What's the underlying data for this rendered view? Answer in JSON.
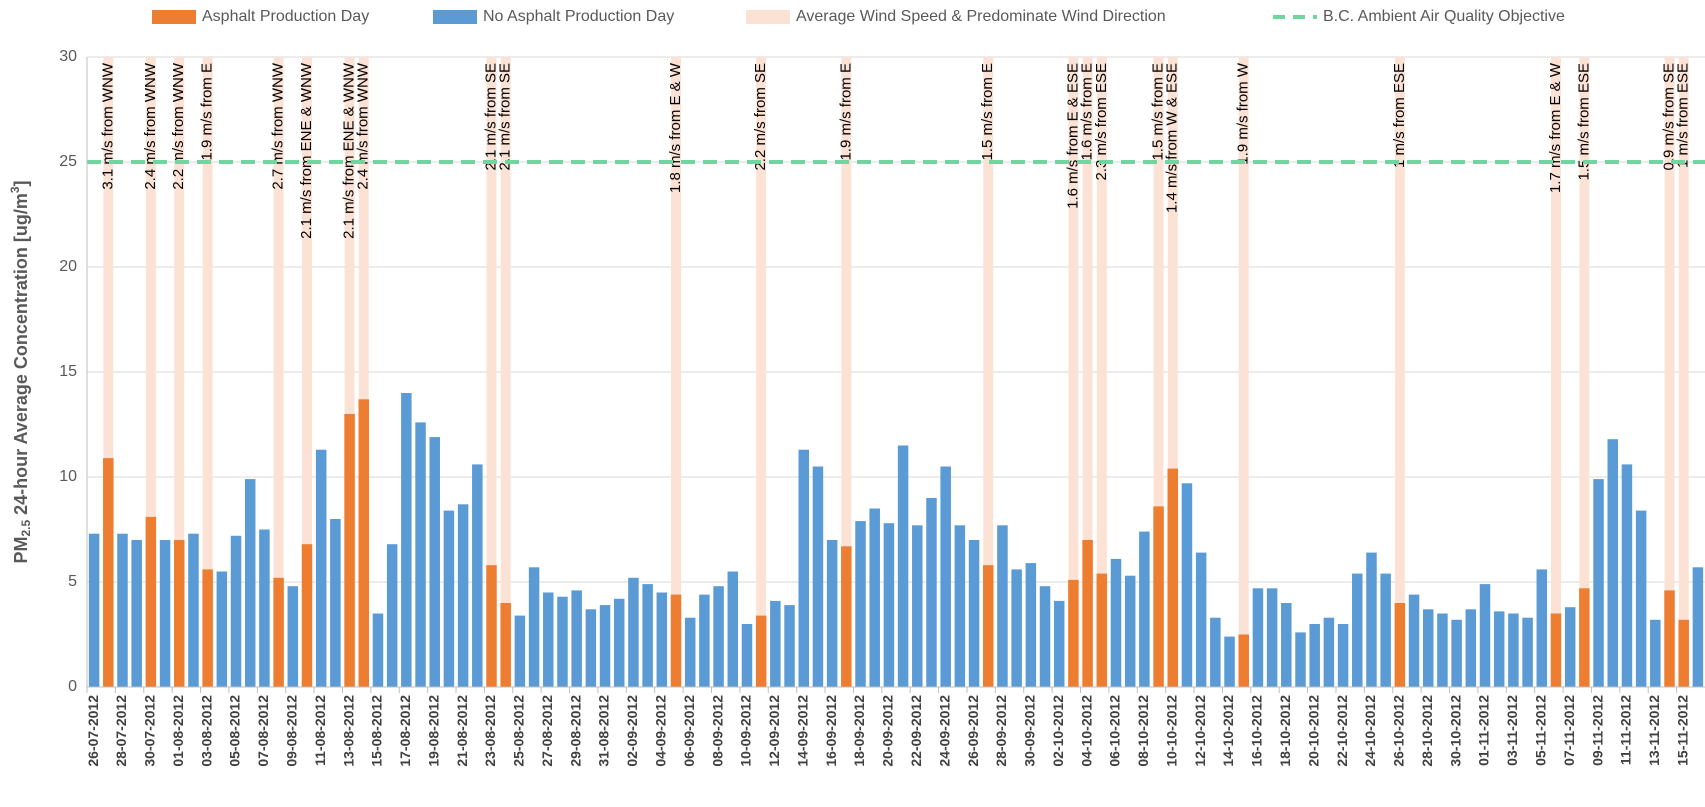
{
  "chart_data": {
    "type": "bar",
    "y_label": {
      "main": "PM",
      "sub": "2.5",
      "rest": " 24-hour Average Concentration [ug/m",
      "sup": "3",
      "end": "]"
    },
    "categories": [
      "26-07-2012",
      null,
      "28-07-2012",
      null,
      "30-07-2012",
      null,
      "01-08-2012",
      null,
      "03-08-2012",
      null,
      "05-08-2012",
      null,
      "07-08-2012",
      null,
      "09-08-2012",
      null,
      "11-08-2012",
      null,
      "13-08-2012",
      null,
      "15-08-2012",
      null,
      "17-08-2012",
      null,
      "19-08-2012",
      null,
      "21-08-2012",
      null,
      "23-08-2012",
      null,
      "25-08-2012",
      null,
      "27-08-2012",
      null,
      "29-08-2012",
      null,
      "31-08-2012",
      null,
      "02-09-2012",
      null,
      "04-09-2012",
      null,
      "06-09-2012",
      null,
      "08-09-2012",
      null,
      "10-09-2012",
      null,
      "12-09-2012",
      null,
      "14-09-2012",
      null,
      "16-09-2012",
      null,
      "18-09-2012",
      null,
      "20-09-2012",
      null,
      "22-09-2012",
      null,
      "24-09-2012",
      null,
      "26-09-2012",
      null,
      "28-09-2012",
      null,
      "30-09-2012",
      null,
      "02-10-2012",
      null,
      "04-10-2012",
      null,
      "06-10-2012",
      null,
      "08-10-2012",
      null,
      "10-10-2012",
      null,
      "12-10-2012",
      null,
      "14-10-2012",
      null,
      "16-10-2012",
      null,
      "18-10-2012",
      null,
      "20-10-2012",
      null,
      "22-10-2012",
      null,
      "24-10-2012",
      null,
      "26-10-2012",
      null,
      "28-10-2012",
      null,
      "30-10-2012",
      null,
      "01-11-2012",
      null,
      "03-11-2012",
      null,
      "05-11-2012",
      null,
      "07-11-2012",
      null,
      "09-11-2012",
      null,
      "11-11-2012",
      null,
      "13-11-2012",
      null,
      "15-11-2012",
      null
    ],
    "series": [
      {
        "name": "Asphalt Production Day",
        "color": "#ed7d31",
        "values": [
          null,
          10.9,
          null,
          null,
          8.1,
          null,
          7.0,
          null,
          5.6,
          null,
          null,
          null,
          null,
          5.2,
          null,
          6.8,
          null,
          null,
          13.0,
          13.7,
          null,
          null,
          null,
          null,
          null,
          null,
          null,
          null,
          5.8,
          4.0,
          null,
          null,
          null,
          null,
          null,
          null,
          null,
          null,
          null,
          null,
          null,
          4.4,
          null,
          null,
          null,
          null,
          null,
          3.4,
          null,
          null,
          null,
          null,
          null,
          6.7,
          null,
          null,
          null,
          null,
          null,
          null,
          null,
          null,
          null,
          5.8,
          null,
          null,
          null,
          null,
          null,
          5.1,
          7.0,
          5.4,
          null,
          null,
          null,
          8.6,
          10.4,
          null,
          null,
          null,
          null,
          2.5,
          null,
          null,
          null,
          null,
          null,
          null,
          null,
          null,
          null,
          null,
          4.0,
          null,
          null,
          null,
          null,
          null,
          null,
          null,
          null,
          null,
          null,
          3.5,
          null,
          4.7,
          null,
          null,
          null,
          null,
          null,
          4.6,
          3.2,
          null
        ]
      },
      {
        "name": "No Asphalt Production Day",
        "color": "#5b9bd5",
        "values": [
          7.3,
          null,
          7.3,
          7.0,
          null,
          7.0,
          null,
          7.3,
          null,
          5.5,
          7.2,
          9.9,
          7.5,
          null,
          4.8,
          null,
          11.3,
          8.0,
          null,
          null,
          3.5,
          6.8,
          14.0,
          12.6,
          11.9,
          8.4,
          8.7,
          10.6,
          null,
          null,
          3.4,
          5.7,
          4.5,
          4.3,
          4.6,
          3.7,
          3.9,
          4.2,
          5.2,
          4.9,
          4.5,
          null,
          3.3,
          4.4,
          4.8,
          5.5,
          3.0,
          null,
          4.1,
          3.9,
          11.3,
          10.5,
          7.0,
          null,
          7.9,
          8.5,
          7.8,
          11.5,
          7.7,
          9.0,
          10.5,
          7.7,
          7.0,
          null,
          7.7,
          5.6,
          5.9,
          4.8,
          4.1,
          null,
          null,
          null,
          6.1,
          5.3,
          7.4,
          null,
          null,
          9.7,
          6.4,
          3.3,
          2.4,
          null,
          4.7,
          4.7,
          4.0,
          2.6,
          3.0,
          3.3,
          3.0,
          5.4,
          6.4,
          5.4,
          null,
          4.4,
          3.7,
          3.5,
          3.2,
          3.7,
          4.9,
          3.6,
          3.5,
          3.3,
          5.6,
          null,
          3.8,
          null,
          9.9,
          11.8,
          10.6,
          8.4,
          3.2,
          null,
          null,
          5.7
        ]
      }
    ],
    "wind": {
      "name": "Average Wind Speed & Predominate Wind Direction",
      "color": "#fbe2d5",
      "labels": [
        null,
        "3.1 m/s from WNW",
        null,
        null,
        "2.4 m/s from WNW",
        null,
        "2.2 m/s from WNW",
        null,
        "1.9 m/s from E",
        null,
        null,
        null,
        null,
        "2.7 m/s from WNW",
        null,
        "2.1 m/s from ENE & WNW",
        null,
        null,
        "2.1 m/s from ENE & WNW",
        "2.4 m/s from WNW",
        null,
        null,
        null,
        null,
        null,
        null,
        null,
        null,
        "2.1 m/s from SE",
        "2.1 m/s from SE",
        null,
        null,
        null,
        null,
        null,
        null,
        null,
        null,
        null,
        null,
        null,
        "1.8 m/s from E & W",
        null,
        null,
        null,
        null,
        null,
        "2.2 m/s from SE",
        null,
        null,
        null,
        null,
        null,
        "1.9 m/s from E",
        null,
        null,
        null,
        null,
        null,
        null,
        null,
        null,
        null,
        "1.5 m/s from E",
        null,
        null,
        null,
        null,
        null,
        "1.6 m/s from E & ESE",
        "1.6 m/s from E",
        "2.3 m/s from ESE",
        null,
        null,
        null,
        "1.5 m/s from E",
        "1.4 m/s from W & ESE",
        null,
        null,
        null,
        null,
        "1.9 m/s from W",
        null,
        null,
        null,
        null,
        null,
        null,
        null,
        null,
        null,
        null,
        "1 m/s from ESE",
        null,
        null,
        null,
        null,
        null,
        null,
        null,
        null,
        null,
        null,
        "1.7 m/s from E & W",
        null,
        "1.5 m/s from ESE",
        null,
        null,
        null,
        null,
        null,
        "0.9 m/s from SE",
        "1 m/s from ESE",
        null
      ]
    },
    "objective": {
      "name": "B.C. Ambient Air Quality Objective",
      "color": "#6fd6a0",
      "value": 25
    },
    "ylim": [
      0,
      30
    ],
    "yticks": [
      0,
      5,
      10,
      15,
      20,
      25,
      30
    ],
    "grid": true
  }
}
